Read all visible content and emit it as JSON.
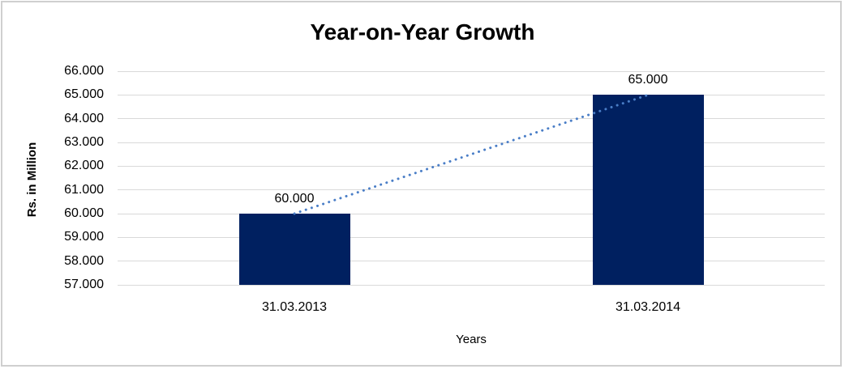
{
  "chart_data": {
    "type": "bar",
    "title": "Year-on-Year Growth",
    "xlabel": "Years",
    "ylabel": "Rs. in Million",
    "categories": [
      "31.03.2013",
      "31.03.2014"
    ],
    "values": [
      60000,
      65000
    ],
    "data_labels": [
      "60.000",
      "65.000"
    ],
    "ylim": [
      57000,
      66000
    ],
    "yticks": [
      {
        "value": 57000,
        "label": "57.000"
      },
      {
        "value": 58000,
        "label": "58.000"
      },
      {
        "value": 59000,
        "label": "59.000"
      },
      {
        "value": 60000,
        "label": "60.000"
      },
      {
        "value": 61000,
        "label": "61.000"
      },
      {
        "value": 62000,
        "label": "62.000"
      },
      {
        "value": 63000,
        "label": "63.000"
      },
      {
        "value": 64000,
        "label": "64.000"
      },
      {
        "value": 65000,
        "label": "65.000"
      },
      {
        "value": 66000,
        "label": "66.000"
      }
    ],
    "grid": true,
    "legend_visible": false,
    "trendline": {
      "style": "dotted",
      "type": "linear"
    },
    "colors": {
      "bar": "#002060",
      "trendline": "#4a7ec7",
      "gridline": "#d9d9d9",
      "frame_border": "#cfcfcf",
      "text": "#000000"
    }
  }
}
